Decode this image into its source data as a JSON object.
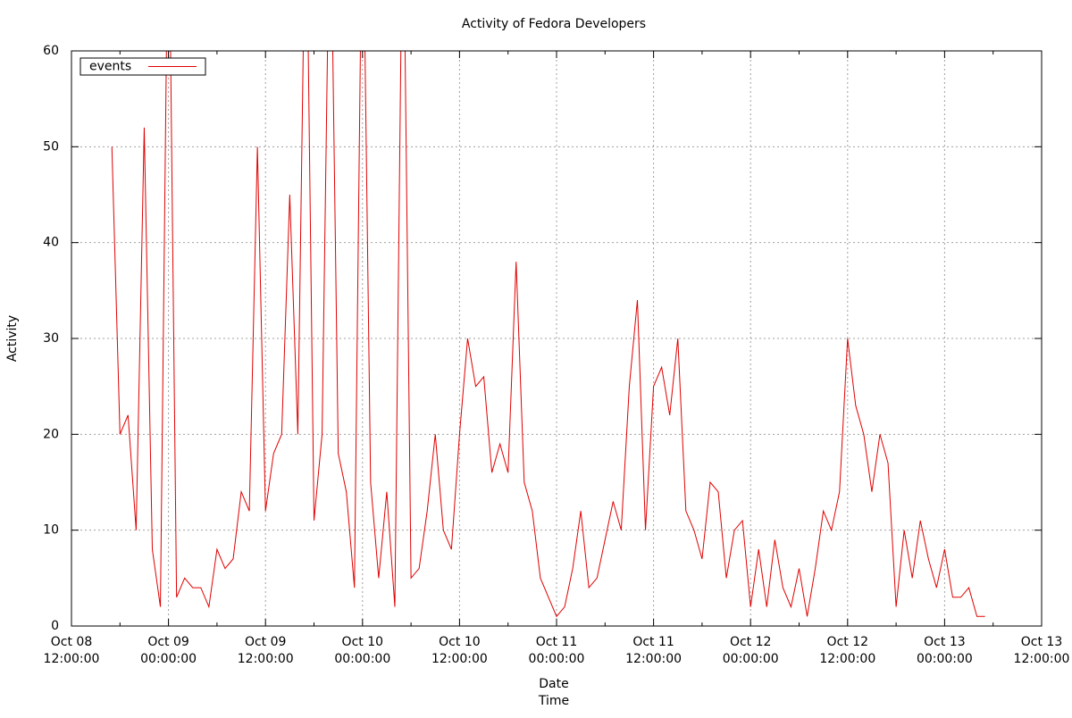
{
  "chart_data": {
    "type": "line",
    "title": "Activity of Fedora Developers",
    "xlabel": [
      "Date",
      "Time"
    ],
    "ylabel": "Activity",
    "xlim": [
      "Oct 08 12:00:00",
      "Oct 13 12:00:00"
    ],
    "xticks": [
      {
        "value": "Oct 08 12:00:00",
        "label": [
          "Oct 08",
          "12:00:00"
        ]
      },
      {
        "value": "Oct 09 00:00:00",
        "label": [
          "Oct 09",
          "00:00:00"
        ]
      },
      {
        "value": "Oct 09 12:00:00",
        "label": [
          "Oct 09",
          "12:00:00"
        ]
      },
      {
        "value": "Oct 10 00:00:00",
        "label": [
          "Oct 10",
          "00:00:00"
        ]
      },
      {
        "value": "Oct 10 12:00:00",
        "label": [
          "Oct 10",
          "12:00:00"
        ]
      },
      {
        "value": "Oct 11 00:00:00",
        "label": [
          "Oct 11",
          "00:00:00"
        ]
      },
      {
        "value": "Oct 11 12:00:00",
        "label": [
          "Oct 11",
          "12:00:00"
        ]
      },
      {
        "value": "Oct 12 00:00:00",
        "label": [
          "Oct 12",
          "00:00:00"
        ]
      },
      {
        "value": "Oct 12 12:00:00",
        "label": [
          "Oct 12",
          "12:00:00"
        ]
      },
      {
        "value": "Oct 13 00:00:00",
        "label": [
          "Oct 13",
          "00:00:00"
        ]
      },
      {
        "value": "Oct 13 12:00:00",
        "label": [
          "Oct 13",
          "12:00:00"
        ]
      }
    ],
    "ylim": [
      0,
      60
    ],
    "yticks": [
      0,
      10,
      20,
      30,
      40,
      50,
      60
    ],
    "grid": true,
    "legend": "top-left",
    "x": [
      "Oct 08 17:00:00",
      "Oct 08 18:00:00",
      "Oct 08 19:00:00",
      "Oct 08 20:00:00",
      "Oct 08 21:00:00",
      "Oct 08 22:00:00",
      "Oct 08 23:00:00",
      "Oct 09 00:00:00",
      "Oct 09 01:00:00",
      "Oct 09 02:00:00",
      "Oct 09 03:00:00",
      "Oct 09 04:00:00",
      "Oct 09 05:00:00",
      "Oct 09 06:00:00",
      "Oct 09 07:00:00",
      "Oct 09 08:00:00",
      "Oct 09 09:00:00",
      "Oct 09 10:00:00",
      "Oct 09 11:00:00",
      "Oct 09 12:00:00",
      "Oct 09 13:00:00",
      "Oct 09 14:00:00",
      "Oct 09 15:00:00",
      "Oct 09 16:00:00",
      "Oct 09 17:00:00",
      "Oct 09 18:00:00",
      "Oct 09 19:00:00",
      "Oct 09 20:00:00",
      "Oct 09 21:00:00",
      "Oct 09 22:00:00",
      "Oct 09 23:00:00",
      "Oct 10 00:00:00",
      "Oct 10 01:00:00",
      "Oct 10 02:00:00",
      "Oct 10 03:00:00",
      "Oct 10 04:00:00",
      "Oct 10 05:00:00",
      "Oct 10 06:00:00",
      "Oct 10 07:00:00",
      "Oct 10 08:00:00",
      "Oct 10 09:00:00",
      "Oct 10 10:00:00",
      "Oct 10 11:00:00",
      "Oct 10 12:00:00",
      "Oct 10 13:00:00",
      "Oct 10 14:00:00",
      "Oct 10 15:00:00",
      "Oct 10 16:00:00",
      "Oct 10 17:00:00",
      "Oct 10 18:00:00",
      "Oct 10 19:00:00",
      "Oct 10 20:00:00",
      "Oct 10 21:00:00",
      "Oct 10 22:00:00",
      "Oct 10 23:00:00",
      "Oct 11 00:00:00",
      "Oct 11 01:00:00",
      "Oct 11 02:00:00",
      "Oct 11 03:00:00",
      "Oct 11 04:00:00",
      "Oct 11 05:00:00",
      "Oct 11 06:00:00",
      "Oct 11 07:00:00",
      "Oct 11 08:00:00",
      "Oct 11 09:00:00",
      "Oct 11 10:00:00",
      "Oct 11 11:00:00",
      "Oct 11 12:00:00",
      "Oct 11 13:00:00",
      "Oct 11 14:00:00",
      "Oct 11 15:00:00",
      "Oct 11 16:00:00",
      "Oct 11 17:00:00",
      "Oct 11 18:00:00",
      "Oct 11 19:00:00",
      "Oct 11 20:00:00",
      "Oct 11 21:00:00",
      "Oct 11 22:00:00",
      "Oct 11 23:00:00",
      "Oct 12 00:00:00",
      "Oct 12 01:00:00",
      "Oct 12 02:00:00",
      "Oct 12 03:00:00",
      "Oct 12 04:00:00",
      "Oct 12 05:00:00",
      "Oct 12 06:00:00",
      "Oct 12 07:00:00",
      "Oct 12 08:00:00",
      "Oct 12 09:00:00",
      "Oct 12 10:00:00",
      "Oct 12 11:00:00",
      "Oct 12 12:00:00",
      "Oct 12 13:00:00",
      "Oct 12 14:00:00",
      "Oct 12 15:00:00",
      "Oct 12 16:00:00",
      "Oct 12 17:00:00",
      "Oct 12 18:00:00",
      "Oct 12 19:00:00",
      "Oct 12 20:00:00",
      "Oct 12 21:00:00",
      "Oct 12 22:00:00",
      "Oct 12 23:00:00",
      "Oct 13 00:00:00",
      "Oct 13 01:00:00",
      "Oct 13 02:00:00",
      "Oct 13 03:00:00",
      "Oct 13 04:00:00",
      "Oct 13 05:00:00"
    ],
    "series": [
      {
        "name": "events",
        "color": "#e00000",
        "values": [
          50,
          20,
          22,
          10,
          52,
          8,
          2,
          80,
          3,
          5,
          4,
          4,
          2,
          8,
          6,
          7,
          14,
          12,
          50,
          12,
          18,
          20,
          45,
          20,
          80,
          11,
          20,
          80,
          18,
          14,
          4,
          80,
          15,
          5,
          14,
          2,
          80,
          5,
          6,
          12,
          20,
          10,
          8,
          20,
          30,
          25,
          26,
          16,
          19,
          16,
          38,
          15,
          12,
          5,
          3,
          1,
          2,
          6,
          12,
          4,
          5,
          9,
          13,
          10,
          25,
          34,
          10,
          25,
          27,
          22,
          30,
          12,
          10,
          7,
          15,
          14,
          5,
          10,
          11,
          2,
          8,
          2,
          9,
          4,
          2,
          6,
          1,
          6,
          12,
          10,
          14,
          30,
          23,
          20,
          14,
          20,
          17,
          2,
          10,
          5,
          11,
          7,
          4,
          8,
          3,
          3,
          4,
          1,
          1
        ]
      }
    ]
  }
}
